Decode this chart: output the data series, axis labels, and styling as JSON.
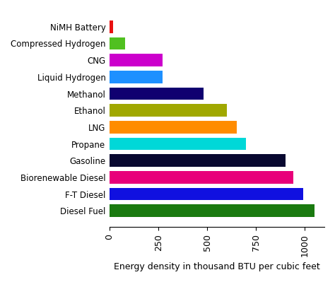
{
  "categories": [
    "Diesel Fuel",
    "F-T Diesel",
    "Biorenewable Diesel",
    "Gasoline",
    "Propane",
    "LNG",
    "Ethanol",
    "Methanol",
    "Liquid Hydrogen",
    "CNG",
    "Compressed Hydrogen",
    "NiMH Battery"
  ],
  "values": [
    1050,
    990,
    940,
    900,
    700,
    650,
    600,
    480,
    270,
    270,
    80,
    18
  ],
  "colors": [
    "#1a7a10",
    "#1010e0",
    "#e8007a",
    "#080830",
    "#00d8d8",
    "#ff8c00",
    "#a0a800",
    "#100070",
    "#1e90ff",
    "#cc00cc",
    "#50c020",
    "#e81010"
  ],
  "xlabel": "Energy density in thousand BTU per cubic feet",
  "xlim": [
    0,
    1100
  ],
  "xticks": [
    0,
    250,
    500,
    750,
    1000
  ],
  "xtick_labels": [
    "0",
    "250",
    "500",
    "750",
    "1000"
  ],
  "figsize": [
    4.74,
    3.99
  ],
  "dpi": 100,
  "bar_height": 0.75,
  "ylabel_fontsize": 9,
  "xlabel_fontsize": 9,
  "ytick_fontsize": 8.5,
  "xtick_fontsize": 9
}
